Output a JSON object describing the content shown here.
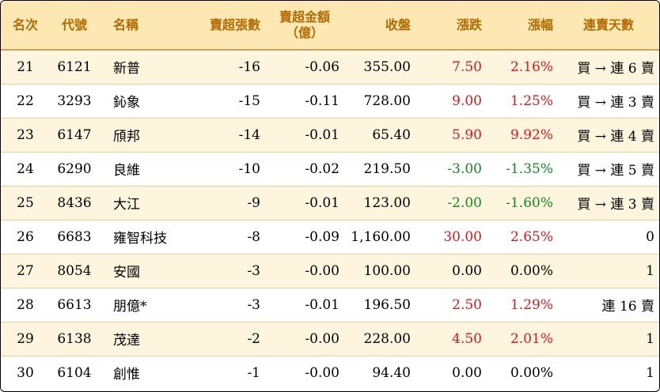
{
  "headers": {
    "rank": "名次",
    "code": "代號",
    "name": "名稱",
    "sell_lots": "賣超張數",
    "sell_amount_line1": "賣超金額",
    "sell_amount_line2": "（億）",
    "close": "收盤",
    "change": "漲跌",
    "change_pct": "漲幅",
    "streak": "連賣天數"
  },
  "colors": {
    "header_bg": "#fde8b3",
    "header_text": "#b36a00",
    "row_alt_bg": "#fdf5dd",
    "up": "#e0161c",
    "down": "#128a1f"
  },
  "rows": [
    {
      "rank": "21",
      "code": "6121",
      "name": "新普",
      "sell_lots": "-16",
      "sell_amount": "-0.06",
      "close": "355.00",
      "change": "7.50",
      "change_pct": "2.16%",
      "trend": "up",
      "streak": "買 → 連 6 賣"
    },
    {
      "rank": "22",
      "code": "3293",
      "name": "鈊象",
      "sell_lots": "-15",
      "sell_amount": "-0.11",
      "close": "728.00",
      "change": "9.00",
      "change_pct": "1.25%",
      "trend": "up",
      "streak": "買 → 連 3 賣"
    },
    {
      "rank": "23",
      "code": "6147",
      "name": "頎邦",
      "sell_lots": "-14",
      "sell_amount": "-0.01",
      "close": "65.40",
      "change": "5.90",
      "change_pct": "9.92%",
      "trend": "up",
      "streak": "買 → 連 4 賣"
    },
    {
      "rank": "24",
      "code": "6290",
      "name": "良維",
      "sell_lots": "-10",
      "sell_amount": "-0.02",
      "close": "219.50",
      "change": "-3.00",
      "change_pct": "-1.35%",
      "trend": "down",
      "streak": "買 → 連 5 賣"
    },
    {
      "rank": "25",
      "code": "8436",
      "name": "大江",
      "sell_lots": "-9",
      "sell_amount": "-0.01",
      "close": "123.00",
      "change": "-2.00",
      "change_pct": "-1.60%",
      "trend": "down",
      "streak": "買 → 連 3 賣"
    },
    {
      "rank": "26",
      "code": "6683",
      "name": "雍智科技",
      "sell_lots": "-8",
      "sell_amount": "-0.09",
      "close": "1,160.00",
      "change": "30.00",
      "change_pct": "2.65%",
      "trend": "up",
      "streak": "0"
    },
    {
      "rank": "27",
      "code": "8054",
      "name": "安國",
      "sell_lots": "-3",
      "sell_amount": "-0.00",
      "close": "100.00",
      "change": "0.00",
      "change_pct": "0.00%",
      "trend": "zero",
      "streak": "1"
    },
    {
      "rank": "28",
      "code": "6613",
      "name": "朋億*",
      "sell_lots": "-3",
      "sell_amount": "-0.01",
      "close": "196.50",
      "change": "2.50",
      "change_pct": "1.29%",
      "trend": "up",
      "streak": "連 16 賣"
    },
    {
      "rank": "29",
      "code": "6138",
      "name": "茂達",
      "sell_lots": "-2",
      "sell_amount": "-0.00",
      "close": "228.00",
      "change": "4.50",
      "change_pct": "2.01%",
      "trend": "up",
      "streak": "1"
    },
    {
      "rank": "30",
      "code": "6104",
      "name": "創惟",
      "sell_lots": "-1",
      "sell_amount": "-0.00",
      "close": "94.40",
      "change": "0.00",
      "change_pct": "0.00%",
      "trend": "zero",
      "streak": "1"
    }
  ]
}
